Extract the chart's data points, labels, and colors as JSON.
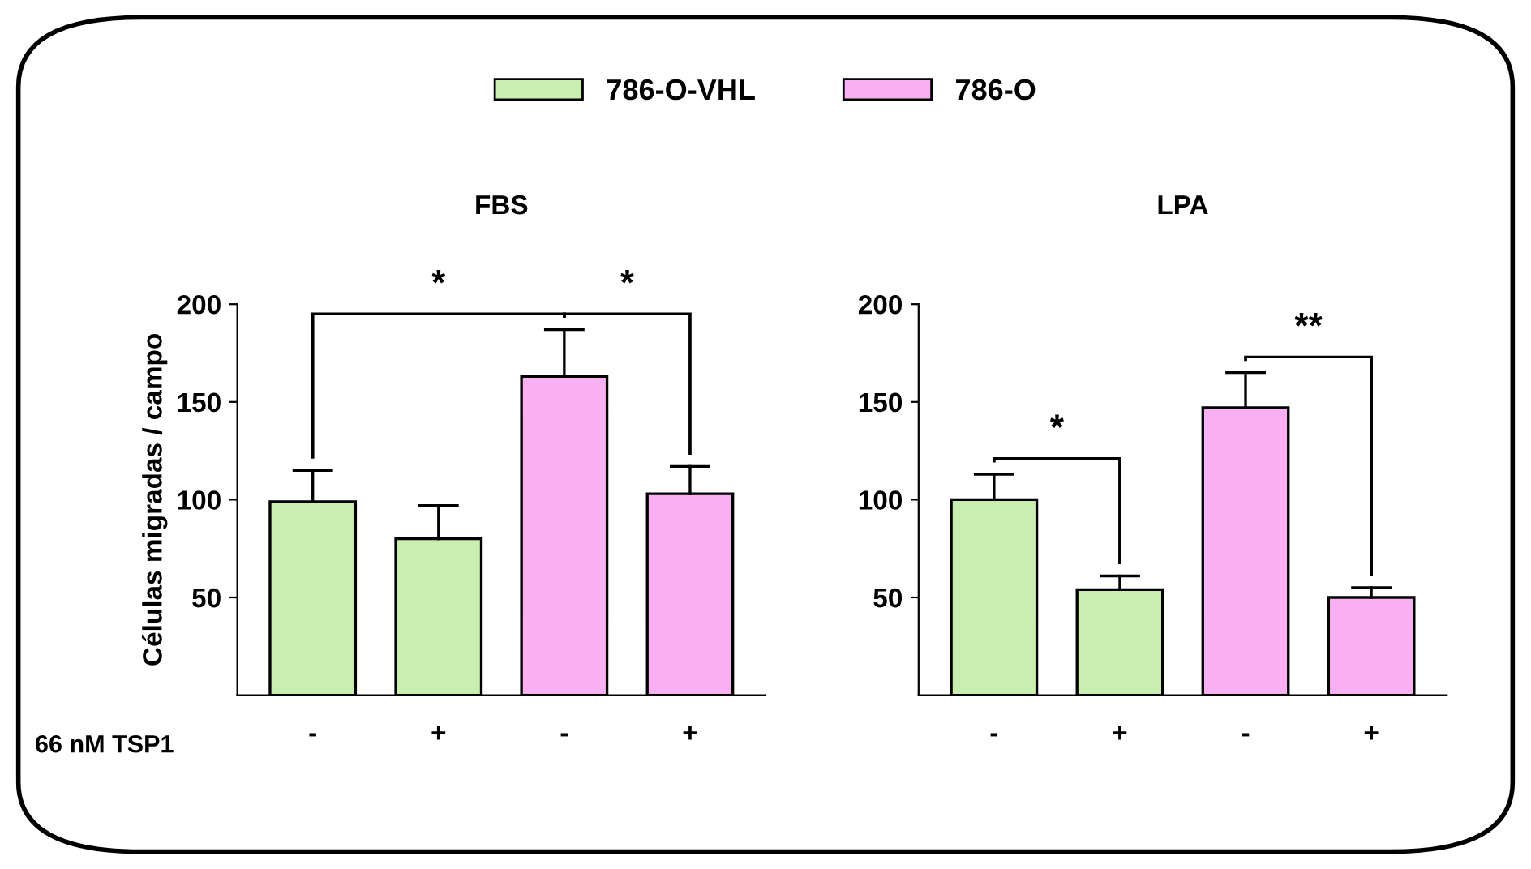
{
  "chart_data": [
    {
      "type": "bar",
      "title": "FBS",
      "ylabel": "Células migradas / campo",
      "categories": [
        "-",
        "+",
        "-",
        "+"
      ],
      "series": [
        {
          "name": "786-O-VHL",
          "color": "#c8eeb0",
          "values": [
            99,
            80,
            null,
            null
          ],
          "errors": [
            [
              99,
              115
            ],
            [
              80,
              97
            ],
            null,
            null
          ]
        },
        {
          "name": "786-O",
          "color": "#f9b0f2",
          "values": [
            null,
            null,
            163,
            103
          ],
          "errors": [
            null,
            null,
            [
              163,
              187
            ],
            [
              103,
              117
            ]
          ]
        }
      ],
      "ylim": [
        0,
        200
      ],
      "yticks": [
        50,
        100,
        150,
        200
      ],
      "legend": "top",
      "annotations": [
        "*",
        "*",
        "66 nM TSP1"
      ]
    },
    {
      "type": "bar",
      "title": "LPA",
      "categories": [
        "-",
        "+",
        "-",
        "+"
      ],
      "series": [
        {
          "color": "#c8eeb0",
          "values": [
            100,
            54,
            null,
            null
          ],
          "errors": [
            [
              100,
              113
            ],
            [
              54,
              61
            ],
            null,
            null
          ]
        },
        {
          "color": "#f9b0f2",
          "values": [
            null,
            null,
            147,
            50
          ],
          "errors": [
            null,
            null,
            [
              147,
              165
            ],
            [
              50,
              55
            ]
          ]
        }
      ],
      "ylim": [
        0,
        200
      ],
      "yticks": [
        50,
        100,
        150,
        200
      ],
      "annotations": [
        "*",
        "**"
      ]
    }
  ]
}
